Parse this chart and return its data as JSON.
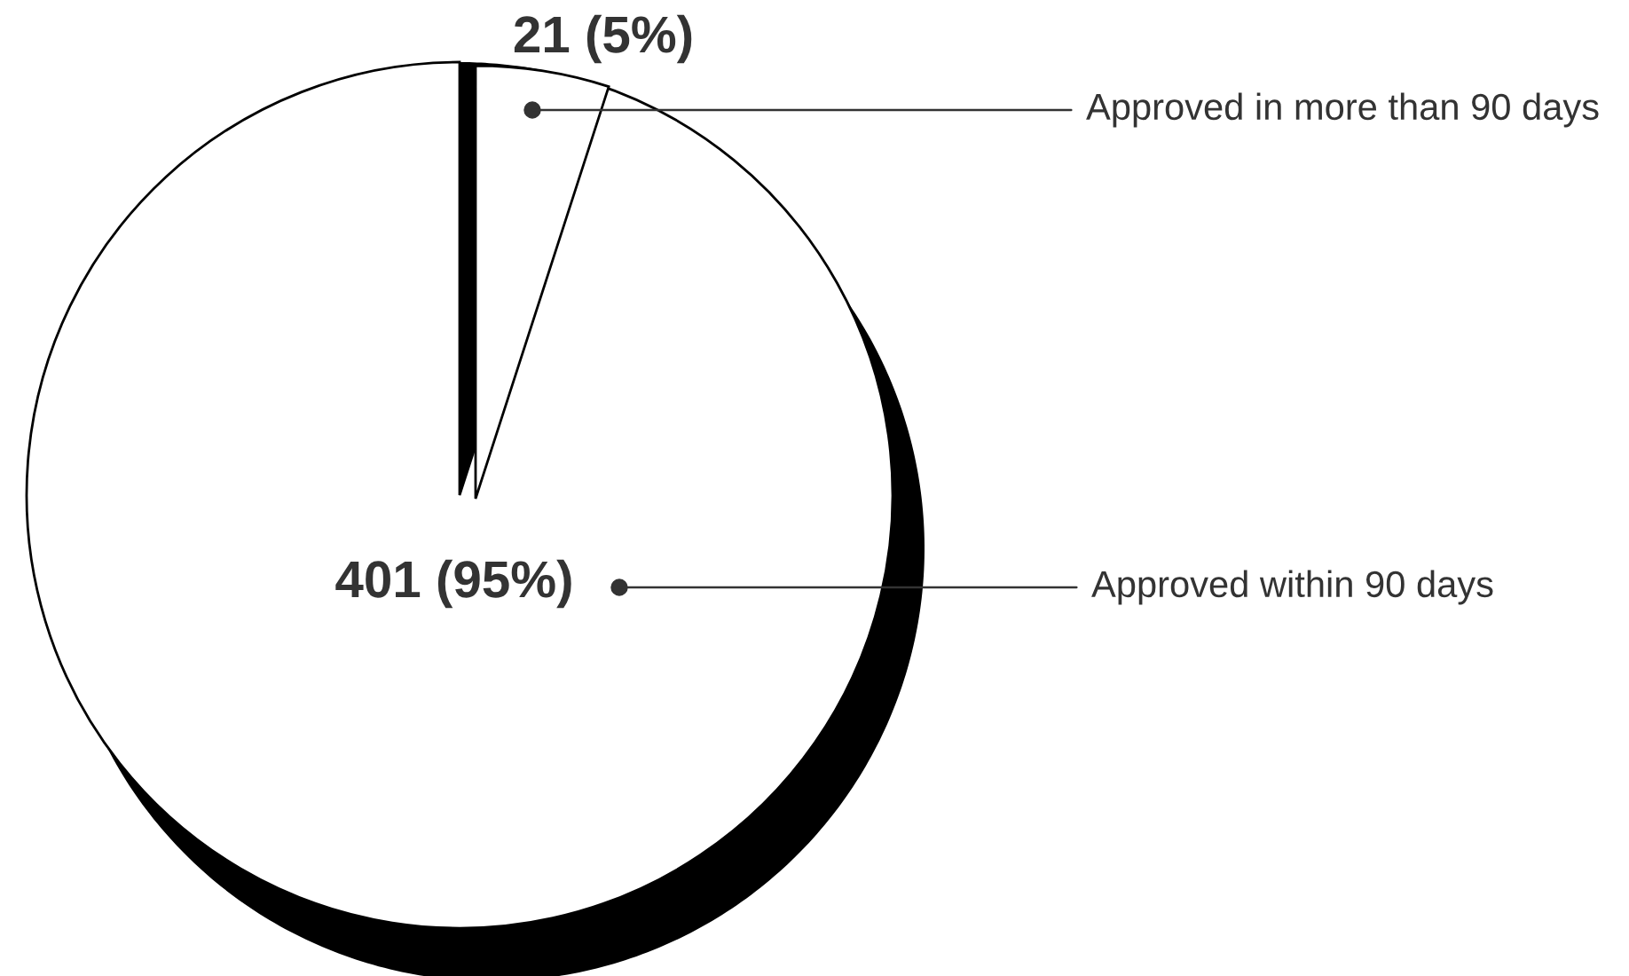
{
  "chart_data": {
    "type": "pie",
    "categories": [
      "Approved in more than 90 days",
      "Approved within 90 days"
    ],
    "values": [
      21,
      401
    ],
    "colors": [
      "#ffffff",
      "#ffffff"
    ],
    "value_labels": [
      "21 (5%)",
      "401 (95%)"
    ]
  }
}
